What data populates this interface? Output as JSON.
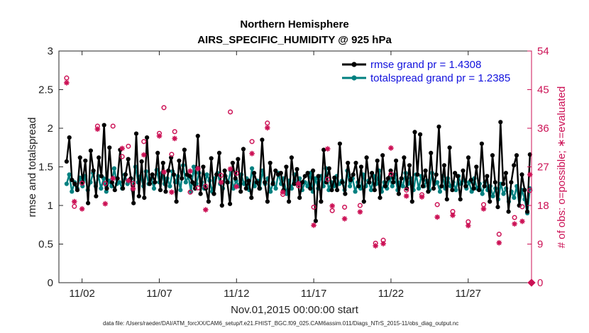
{
  "chart_data": {
    "type": "line",
    "title": "Northern Hemisphere",
    "subtitle": "AIRS_SPECIFIC_HUMIDITY @ 925 hPa",
    "xlabel": "Nov.01,2015 00:00:00 start",
    "ylabel": "rmse and totalspread",
    "ylabel_right": "# of obs: o=possible; ∗=evaluated",
    "xlim": [
      0.5,
      31.1
    ],
    "ylim": [
      0,
      3
    ],
    "ylim_right": [
      0,
      54
    ],
    "x_ticks": [
      {
        "value": 2,
        "label": "11/02"
      },
      {
        "value": 7,
        "label": "11/07"
      },
      {
        "value": 12,
        "label": "11/12"
      },
      {
        "value": 17,
        "label": "11/17"
      },
      {
        "value": 22,
        "label": "11/22"
      },
      {
        "value": 27,
        "label": "11/27"
      }
    ],
    "y_ticks": [
      "0",
      "0.5",
      "1",
      "1.5",
      "2",
      "2.5",
      "3"
    ],
    "y_tick_values": [
      0,
      0.5,
      1,
      1.5,
      2,
      2.5,
      3
    ],
    "y_ticks_right": [
      "0",
      "9",
      "18",
      "27",
      "36",
      "45",
      "54"
    ],
    "y_tick_values_right": [
      0,
      9,
      18,
      27,
      36,
      45,
      54
    ],
    "legend": [
      "rmse grand pr = 1.4308",
      "totalspread grand pr = 1.2385"
    ],
    "series": [
      {
        "name": "rmse",
        "color": "#000000",
        "values": [
          1.57,
          1.88,
          1.33,
          1.28,
          1.2,
          1.62,
          1.3,
          1.58,
          1.03,
          1.71,
          1.45,
          1.12,
          1.62,
          1.38,
          2.04,
          1.22,
          1.75,
          1.3,
          1.2,
          1.35,
          1.72,
          1.22,
          1.4,
          1.6,
          1.35,
          1.03,
          1.93,
          1.12,
          1.57,
          1.1,
          1.88,
          1.28,
          1.4,
          1.3,
          1.68,
          1.2,
          1.55,
          1.18,
          1.45,
          1.62,
          1.4,
          1.05,
          1.58,
          1.35,
          1.72,
          1.4,
          1.38,
          1.3,
          1.22,
          1.9,
          1.15,
          1.5,
          1.22,
          1.05,
          1.61,
          1.15,
          1.4,
          1.68,
          1.0,
          1.45,
          1.3,
          1.02,
          1.55,
          1.35,
          1.6,
          1.18,
          1.73,
          1.22,
          1.32,
          1.1,
          1.42,
          1.3,
          1.22,
          1.85,
          1.3,
          1.05,
          1.55,
          1.28,
          1.45,
          1.4,
          1.42,
          1.2,
          1.5,
          1.05,
          1.62,
          1.28,
          1.47,
          1.1,
          1.3,
          1.38,
          1.42,
          1.22,
          1.45,
          0.8,
          1.38,
          1.05,
          1.72,
          1.3,
          1.48,
          1.2,
          1.36,
          1.2,
          1.8,
          1.3,
          1.15,
          1.55,
          1.33,
          1.4,
          1.55,
          1.25,
          1.5,
          1.05,
          1.62,
          1.3,
          1.42,
          1.2,
          1.58,
          1.1,
          1.65,
          1.25,
          1.35,
          1.45,
          1.3,
          1.58,
          1.15,
          1.35,
          1.62,
          1.22,
          1.52,
          1.05,
          1.95,
          1.4,
          1.92,
          1.25,
          1.45,
          1.18,
          1.68,
          1.22,
          1.4,
          2.02,
          1.25,
          1.52,
          1.08,
          1.75,
          1.2,
          1.42,
          1.38,
          1.08,
          1.45,
          1.25,
          1.62,
          1.33,
          1.22,
          1.5,
          1.2,
          1.8,
          1.25,
          1.38,
          1.05,
          1.65,
          1.3,
          0.98,
          2.08,
          1.28,
          1.42,
          0.92,
          1.3,
          1.52,
          1.65,
          1.0,
          1.4,
          1.2,
          0.92,
          1.66
        ]
      },
      {
        "name": "totalspread",
        "color": "#008080",
        "values": [
          1.28,
          1.4,
          1.18,
          1.3,
          1.22,
          1.36,
          1.25,
          1.38,
          1.2,
          1.3,
          1.42,
          1.25,
          1.38,
          1.22,
          1.35,
          1.18,
          1.32,
          1.25,
          1.48,
          1.28,
          1.3,
          1.22,
          1.4,
          1.28,
          1.32,
          1.2,
          1.5,
          1.3,
          1.38,
          1.25,
          1.44,
          1.28,
          1.35,
          1.22,
          1.46,
          1.3,
          1.42,
          1.28,
          1.35,
          1.25,
          1.44,
          1.3,
          1.38,
          1.2,
          1.52,
          1.3,
          1.38,
          1.18,
          1.5,
          1.28,
          1.42,
          1.3,
          1.22,
          1.4,
          1.32,
          1.18,
          1.35,
          1.42,
          1.28,
          1.22,
          1.38,
          1.3,
          1.45,
          1.22,
          1.32,
          1.25,
          1.4,
          1.28,
          1.35,
          1.2,
          1.48,
          1.25,
          1.32,
          1.22,
          1.45,
          1.28,
          1.35,
          1.18,
          1.3,
          1.22,
          1.42,
          1.28,
          1.35,
          1.15,
          1.32,
          1.22,
          1.4,
          1.28,
          1.35,
          1.2,
          1.3,
          1.25,
          1.42,
          1.18,
          1.35,
          1.22,
          1.38,
          1.25,
          1.48,
          1.2,
          1.3,
          1.25,
          1.38,
          1.28,
          1.32,
          1.2,
          1.45,
          1.25,
          1.35,
          1.18,
          1.3,
          1.22,
          1.4,
          1.25,
          1.32,
          1.2,
          1.38,
          1.28,
          1.45,
          1.18,
          1.3,
          1.22,
          1.35,
          1.25,
          1.4,
          1.2,
          1.3,
          1.25,
          1.42,
          1.28,
          1.35,
          1.2,
          1.4,
          1.22,
          1.38,
          1.25,
          1.32,
          1.2,
          1.42,
          1.28,
          1.3,
          1.18,
          1.38,
          1.22,
          1.35,
          1.25,
          1.3,
          1.2,
          1.38,
          1.28,
          1.33,
          1.22,
          1.3,
          1.18,
          1.35,
          1.22,
          1.28,
          1.15,
          1.3,
          1.2,
          1.25,
          1.12,
          1.22,
          1.08,
          1.28,
          1.15,
          1.22,
          1.05,
          1.18,
          1.1,
          1.25,
          1.0,
          1.2,
          1.08,
          0.9,
          1.22
        ]
      },
      {
        "name": "obs possible",
        "axis": "right",
        "marker": "o",
        "color": "#cc1155",
        "points": [
          [
            1,
            47.7
          ],
          [
            1.5,
            17.8
          ],
          [
            2,
            23.2
          ],
          [
            3,
            36.5
          ],
          [
            3.5,
            23.1
          ],
          [
            4,
            36.5
          ],
          [
            4.6,
            29.4
          ],
          [
            5,
            31.8
          ],
          [
            5.3,
            23.1
          ],
          [
            6,
            32.9
          ],
          [
            7,
            34.8
          ],
          [
            7.3,
            40.8
          ],
          [
            7.8,
            29.9
          ],
          [
            8,
            35.2
          ],
          [
            9,
            21.1
          ],
          [
            9.5,
            22.1
          ],
          [
            10,
            22.5
          ],
          [
            11,
            25.0
          ],
          [
            11.6,
            39.8
          ],
          [
            12,
            25.5
          ],
          [
            13,
            32.9
          ],
          [
            14,
            37.2
          ],
          [
            15,
            20.6
          ],
          [
            16,
            22.6
          ],
          [
            17,
            17.6
          ],
          [
            17.9,
            24.1
          ],
          [
            18.2,
            16.8
          ],
          [
            19,
            17.6
          ],
          [
            20,
            18.0
          ],
          [
            21,
            9.2
          ],
          [
            21.5,
            9.9
          ],
          [
            22,
            25.3
          ],
          [
            23,
            21.6
          ],
          [
            24,
            20.5
          ],
          [
            25,
            18.2
          ],
          [
            26,
            16.6
          ],
          [
            27,
            14.2
          ],
          [
            28,
            18.2
          ],
          [
            29,
            11.3
          ],
          [
            30,
            15.2
          ],
          [
            30.5,
            17.7
          ],
          [
            31,
            21.5
          ]
        ]
      },
      {
        "name": "obs evaluated",
        "axis": "right",
        "marker": "*",
        "color": "#cc1155",
        "points": [
          [
            1,
            46.6
          ],
          [
            1.5,
            18.9
          ],
          [
            2,
            17.2
          ],
          [
            3,
            35.8
          ],
          [
            3.5,
            18.4
          ],
          [
            4,
            24.3
          ],
          [
            4.6,
            31.3
          ],
          [
            5,
            23.8
          ],
          [
            5.3,
            21.9
          ],
          [
            6,
            29.8
          ],
          [
            7,
            34.2
          ],
          [
            7.3,
            25.8
          ],
          [
            7.8,
            21.1
          ],
          [
            8,
            33.6
          ],
          [
            9,
            26.0
          ],
          [
            9.5,
            26.6
          ],
          [
            10,
            17.0
          ],
          [
            11,
            23.4
          ],
          [
            11.6,
            26.5
          ],
          [
            12,
            22.4
          ],
          [
            13,
            30.1
          ],
          [
            14,
            36.1
          ],
          [
            15,
            21.1
          ],
          [
            16,
            23.1
          ],
          [
            17,
            13.4
          ],
          [
            17.9,
            31.2
          ],
          [
            18.2,
            17.9
          ],
          [
            19,
            14.9
          ],
          [
            20,
            16.5
          ],
          [
            21,
            8.6
          ],
          [
            21.5,
            9.1
          ],
          [
            22,
            31.4
          ],
          [
            23,
            20.2
          ],
          [
            24,
            20.0
          ],
          [
            25,
            15.3
          ],
          [
            26,
            15.7
          ],
          [
            27,
            13.3
          ],
          [
            28,
            17.2
          ],
          [
            29,
            9.3
          ],
          [
            30,
            13.7
          ],
          [
            30.5,
            14.3
          ],
          [
            31,
            25.2
          ]
        ]
      }
    ]
  },
  "footer": "data file: /Users/raeder/DAI/ATM_forcXX/CAM6_setup/f.e21.FHIST_BGC.f09_025.CAM6assim.011/Diags_NTrS_2015-11/obs_diag_output.nc"
}
